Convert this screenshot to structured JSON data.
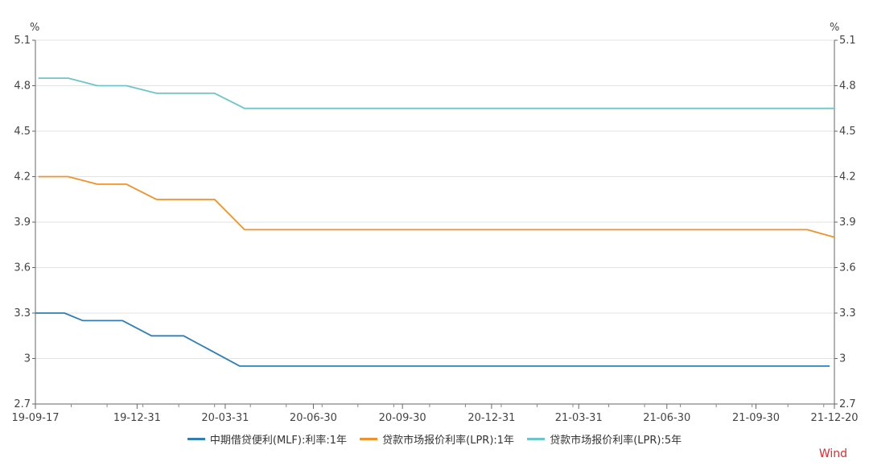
{
  "chart_data": {
    "type": "line",
    "title": "",
    "y_unit": "%",
    "ylim": [
      2.7,
      5.1
    ],
    "yticks": [
      "2.7",
      "3",
      "3.3",
      "3.6",
      "3.9",
      "4.2",
      "4.5",
      "4.8",
      "5.1"
    ],
    "xlim": [
      "2019-09-17",
      "2021-12-20"
    ],
    "xticks": [
      {
        "date": "2019-09-17",
        "label": "19-09-17"
      },
      {
        "date": "2019-12-31",
        "label": "19-12-31"
      },
      {
        "date": "2020-03-31",
        "label": "20-03-31"
      },
      {
        "date": "2020-06-30",
        "label": "20-06-30"
      },
      {
        "date": "2020-09-30",
        "label": "20-09-30"
      },
      {
        "date": "2020-12-31",
        "label": "20-12-31"
      },
      {
        "date": "2021-03-31",
        "label": "21-03-31"
      },
      {
        "date": "2021-06-30",
        "label": "21-06-30"
      },
      {
        "date": "2021-09-30",
        "label": "21-09-30"
      },
      {
        "date": "2021-12-20",
        "label": "21-12-20"
      }
    ],
    "grid": true,
    "legend_position": "bottom",
    "series": [
      {
        "name": "中期借贷便利(MLF):利率:1年",
        "color": "#2f7fb5",
        "points": [
          [
            "2019-09-17",
            3.3
          ],
          [
            "2019-10-17",
            3.3
          ],
          [
            "2019-11-05",
            3.25
          ],
          [
            "2019-12-16",
            3.25
          ],
          [
            "2020-01-15",
            3.15
          ],
          [
            "2020-02-17",
            3.15
          ],
          [
            "2020-04-15",
            2.95
          ],
          [
            "2021-12-15",
            2.95
          ]
        ]
      },
      {
        "name": "贷款市场报价利率(LPR):1年",
        "color": "#f0922a",
        "points": [
          [
            "2019-09-20",
            4.2
          ],
          [
            "2019-10-21",
            4.2
          ],
          [
            "2019-11-20",
            4.15
          ],
          [
            "2019-12-20",
            4.15
          ],
          [
            "2020-01-20",
            4.05
          ],
          [
            "2020-03-20",
            4.05
          ],
          [
            "2020-04-20",
            3.85
          ],
          [
            "2021-11-22",
            3.85
          ],
          [
            "2021-12-20",
            3.8
          ]
        ]
      },
      {
        "name": "贷款市场报价利率(LPR):5年",
        "color": "#6cc6c9",
        "points": [
          [
            "2019-09-20",
            4.85
          ],
          [
            "2019-10-21",
            4.85
          ],
          [
            "2019-11-20",
            4.8
          ],
          [
            "2019-12-20",
            4.8
          ],
          [
            "2020-01-20",
            4.75
          ],
          [
            "2020-03-20",
            4.75
          ],
          [
            "2020-04-20",
            4.65
          ],
          [
            "2021-12-20",
            4.65
          ]
        ]
      }
    ]
  },
  "source_label": "Wind"
}
